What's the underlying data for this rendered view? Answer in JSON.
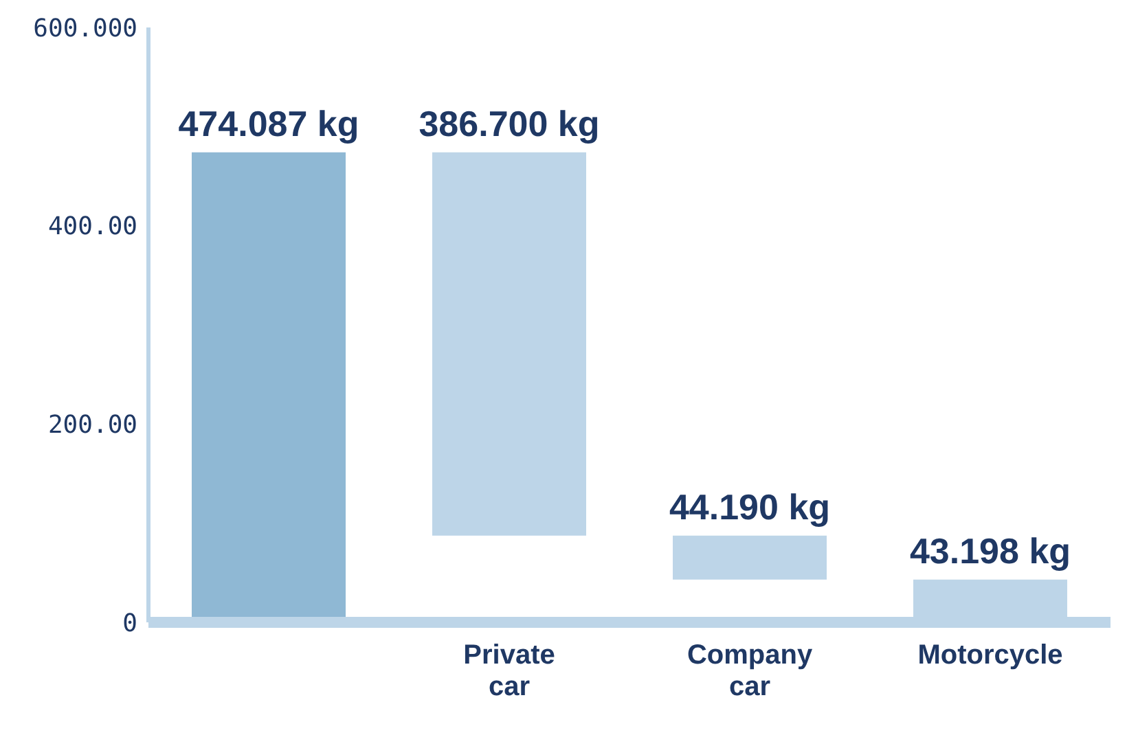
{
  "chart_data": {
    "type": "bar",
    "categories": [
      null,
      "Private car",
      "Company car",
      "Motorcycle"
    ],
    "values": [
      474.087,
      386.7,
      44.19,
      43.198
    ],
    "base": [
      0,
      87.388,
      43.198,
      0
    ],
    "colors": [
      "#8fb8d4",
      "#bdd5e8",
      "#bdd5e8",
      "#bdd5e8"
    ],
    "value_labels": [
      "474.087 kg",
      "386.700 kg",
      "44.190 kg",
      "43.198 kg"
    ],
    "ylim": [
      0,
      600
    ],
    "yticks": [
      0,
      {
        "value": 200,
        "label": "200.00"
      },
      {
        "value": 400,
        "label": "400.00"
      },
      {
        "value": 600,
        "label": "600.000"
      }
    ],
    "grid": false
  }
}
